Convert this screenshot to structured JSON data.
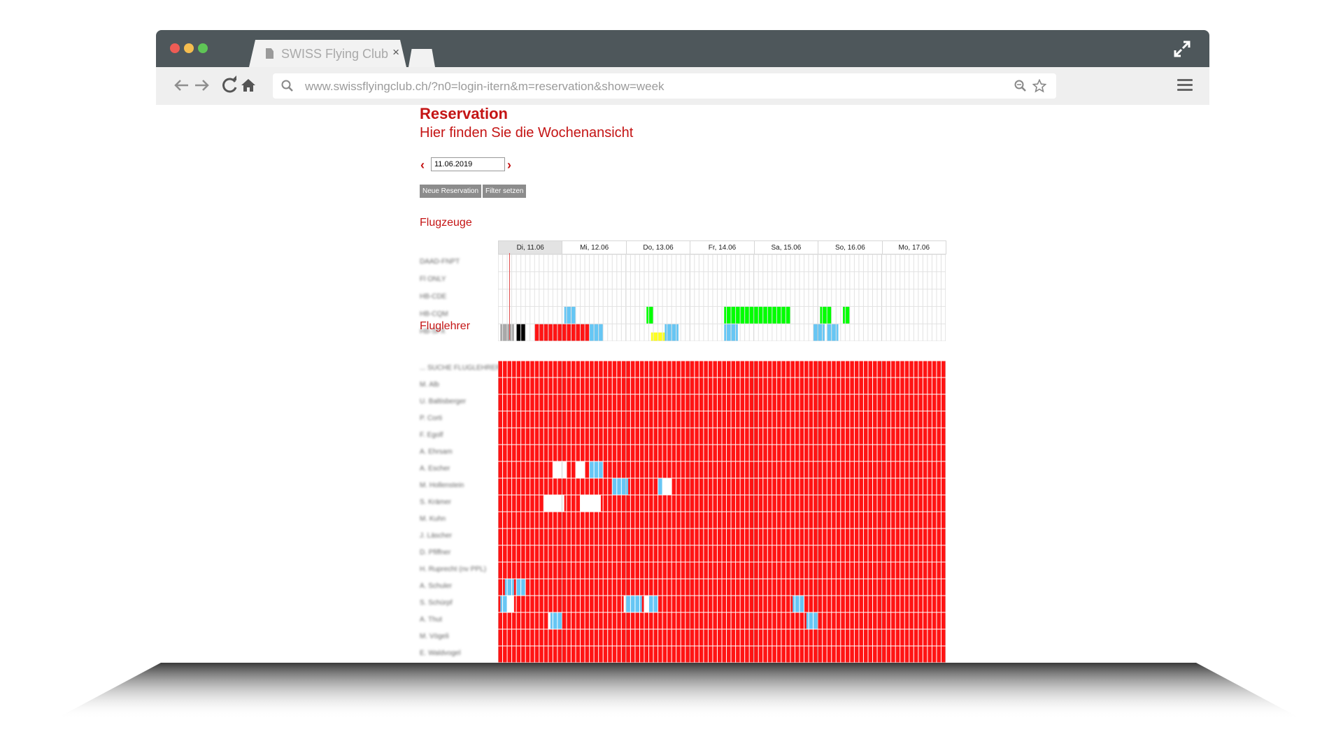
{
  "browser": {
    "tab_title": "SWISS Flying Club",
    "tab_close": "×",
    "url": "www.swissflyingclub.ch/?n0=login-itern&m=reservation&show=week",
    "nav_icons": [
      "back-arrow-icon",
      "forward-arrow-icon",
      "reload-icon",
      "home-icon",
      "search-icon",
      "zoom-icon",
      "star-icon",
      "menu-icon",
      "fullscreen-icon"
    ],
    "dots": [
      "#ee5c55",
      "#f5bd4f",
      "#5fc556"
    ]
  },
  "page": {
    "title": "Reservation",
    "subtitle": "Hier finden Sie die Wochenansicht",
    "date_value": "11.06.2019",
    "prev": "‹",
    "next": "›",
    "buttons": {
      "new_reservation": "Neue Reservation",
      "set_filter": "Filter setzen"
    }
  },
  "calendar": {
    "days": [
      "Di, 11.06",
      "Mi, 12.06",
      "Do, 13.06",
      "Fr, 14.06",
      "Sa, 15.06",
      "So, 16.06",
      "Mo, 17.06"
    ],
    "slots_per_day": 14,
    "current_time_slot": 2.5,
    "colors": {
      "red": "#ff1414",
      "blue": "#66c6f4",
      "green": "#00ff00",
      "yellow": "#ffff1e",
      "gray": "#a8a8a8",
      "black": "#000000"
    }
  },
  "flugzeuge": {
    "title": "Flugzeuge",
    "rows": [
      {
        "label": "DAAD-FNPT",
        "blocks": []
      },
      {
        "label": "Fl ONLY",
        "blocks": []
      },
      {
        "label": "HB-CDE",
        "blocks": []
      },
      {
        "label": "HB-CQM",
        "blocks": [
          {
            "start": 14.5,
            "end": 17.0,
            "color": "blue"
          },
          {
            "start": 32.5,
            "end": 34.0,
            "color": "green"
          },
          {
            "start": 49.5,
            "end": 64.0,
            "color": "green"
          },
          {
            "start": 70.5,
            "end": 73.0,
            "color": "green"
          },
          {
            "start": 75.5,
            "end": 77.0,
            "color": "green"
          }
        ]
      },
      {
        "label": "HB-SFX",
        "blocks": [
          {
            "start": 0.5,
            "end": 3.5,
            "color": "gray"
          },
          {
            "start": 4.0,
            "end": 6.0,
            "color": "black"
          },
          {
            "start": 8.0,
            "end": 20.0,
            "color": "red"
          },
          {
            "start": 20.0,
            "end": 23.0,
            "color": "blue"
          },
          {
            "start": 33.5,
            "end": 37.0,
            "color": "yellow",
            "half": true
          },
          {
            "start": 36.5,
            "end": 39.5,
            "color": "blue"
          },
          {
            "start": 49.5,
            "end": 52.5,
            "color": "blue"
          },
          {
            "start": 69.0,
            "end": 71.5,
            "color": "blue"
          },
          {
            "start": 72.0,
            "end": 74.5,
            "color": "blue"
          }
        ]
      }
    ]
  },
  "fluglehrer": {
    "title": "Fluglehrer",
    "rows": [
      {
        "label": "... SUCHE FLUGLEHRER",
        "openings": []
      },
      {
        "label": "M. Alb",
        "openings": []
      },
      {
        "label": "U. Baltisberger",
        "openings": []
      },
      {
        "label": "P. Corti",
        "openings": []
      },
      {
        "label": "F. Egolf",
        "openings": []
      },
      {
        "label": "A. Ehrsam",
        "openings": []
      },
      {
        "label": "A. Escher",
        "openings": [
          {
            "start": 12,
            "end": 15,
            "color": "white"
          },
          {
            "start": 17,
            "end": 19,
            "color": "white"
          },
          {
            "start": 20,
            "end": 23,
            "color": "blue"
          }
        ]
      },
      {
        "label": "M. Hollenstein",
        "openings": [
          {
            "start": 25,
            "end": 28.5,
            "color": "blue"
          },
          {
            "start": 35,
            "end": 36,
            "color": "blue"
          },
          {
            "start": 36,
            "end": 38,
            "color": "white"
          }
        ]
      },
      {
        "label": "S. Krämer",
        "openings": [
          {
            "start": 10,
            "end": 14.5,
            "color": "white"
          },
          {
            "start": 18,
            "end": 22.5,
            "color": "white"
          }
        ]
      },
      {
        "label": "M. Kuhn",
        "openings": []
      },
      {
        "label": "J. Läscher",
        "openings": []
      },
      {
        "label": "D. Pfiffner",
        "openings": []
      },
      {
        "label": "H. Ruprecht (nv PPL)",
        "openings": []
      },
      {
        "label": "A. Schuler",
        "openings": [
          {
            "start": 1.5,
            "end": 3.5,
            "color": "blue"
          },
          {
            "start": 4,
            "end": 6,
            "color": "blue"
          }
        ]
      },
      {
        "label": "S. Schürpf",
        "openings": [
          {
            "start": 0.5,
            "end": 2,
            "color": "blue"
          },
          {
            "start": 2,
            "end": 3.5,
            "color": "white"
          },
          {
            "start": 27.5,
            "end": 28,
            "color": "white"
          },
          {
            "start": 28,
            "end": 31.5,
            "color": "blue"
          },
          {
            "start": 32,
            "end": 33,
            "color": "white"
          },
          {
            "start": 33,
            "end": 35,
            "color": "blue"
          },
          {
            "start": 64.5,
            "end": 67,
            "color": "blue"
          }
        ]
      },
      {
        "label": "A. Thut",
        "openings": [
          {
            "start": 11,
            "end": 11.5,
            "color": "white"
          },
          {
            "start": 11.5,
            "end": 14,
            "color": "blue"
          },
          {
            "start": 67.5,
            "end": 70,
            "color": "blue"
          }
        ]
      },
      {
        "label": "M. Vögeli",
        "openings": []
      },
      {
        "label": "E. Waldvogel",
        "openings": []
      }
    ]
  }
}
